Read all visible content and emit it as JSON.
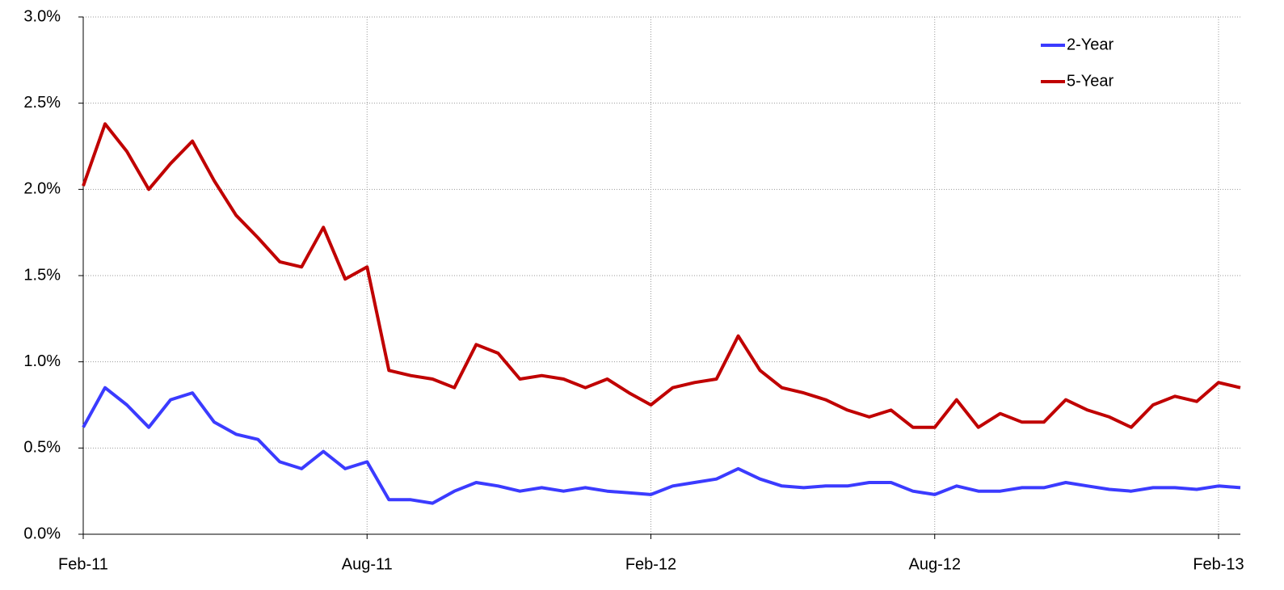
{
  "chart_data": {
    "type": "line",
    "categories": [
      "Feb-11",
      null,
      null,
      null,
      null,
      null,
      null,
      null,
      null,
      null,
      null,
      null,
      null,
      "Aug-11",
      null,
      null,
      null,
      null,
      null,
      null,
      null,
      null,
      null,
      null,
      null,
      null,
      "Feb-12",
      null,
      null,
      null,
      null,
      null,
      null,
      null,
      null,
      null,
      null,
      null,
      null,
      "Aug-12",
      null,
      null,
      null,
      null,
      null,
      null,
      null,
      null,
      null,
      null,
      null,
      null,
      "Feb-13",
      null
    ],
    "series": [
      {
        "name": "2-Year",
        "color": "#3b3bff",
        "values": [
          0.62,
          0.85,
          0.75,
          0.62,
          0.78,
          0.82,
          0.65,
          0.58,
          0.55,
          0.42,
          0.38,
          0.48,
          0.38,
          0.42,
          0.2,
          0.2,
          0.18,
          0.25,
          0.3,
          0.28,
          0.25,
          0.27,
          0.25,
          0.27,
          0.25,
          0.24,
          0.23,
          0.28,
          0.3,
          0.32,
          0.38,
          0.32,
          0.28,
          0.27,
          0.28,
          0.28,
          0.3,
          0.3,
          0.25,
          0.23,
          0.28,
          0.25,
          0.25,
          0.27,
          0.27,
          0.3,
          0.28,
          0.26,
          0.25,
          0.27,
          0.27,
          0.26,
          0.28,
          0.27
        ]
      },
      {
        "name": "5-Year",
        "color": "#c00000",
        "values": [
          2.02,
          2.38,
          2.22,
          2.0,
          2.15,
          2.28,
          2.05,
          1.85,
          1.72,
          1.58,
          1.55,
          1.78,
          1.48,
          1.55,
          0.95,
          0.92,
          0.9,
          0.85,
          1.1,
          1.05,
          0.9,
          0.92,
          0.9,
          0.85,
          0.9,
          0.82,
          0.75,
          0.85,
          0.88,
          0.9,
          1.15,
          0.95,
          0.85,
          0.82,
          0.78,
          0.72,
          0.68,
          0.72,
          0.62,
          0.62,
          0.78,
          0.62,
          0.7,
          0.65,
          0.65,
          0.78,
          0.72,
          0.68,
          0.62,
          0.75,
          0.8,
          0.77,
          0.88,
          0.85
        ]
      }
    ],
    "ylim": [
      0,
      3
    ],
    "yticks": [
      {
        "value": 0,
        "label": "0.0%"
      },
      {
        "value": 0.5,
        "label": "0.5%"
      },
      {
        "value": 1,
        "label": "1.0%"
      },
      {
        "value": 1.5,
        "label": "1.5%"
      },
      {
        "value": 2,
        "label": "2.0%"
      },
      {
        "value": 2.5,
        "label": "2.5%"
      },
      {
        "value": 3,
        "label": "3.0%"
      }
    ],
    "grid": true,
    "legend": "top-right"
  }
}
